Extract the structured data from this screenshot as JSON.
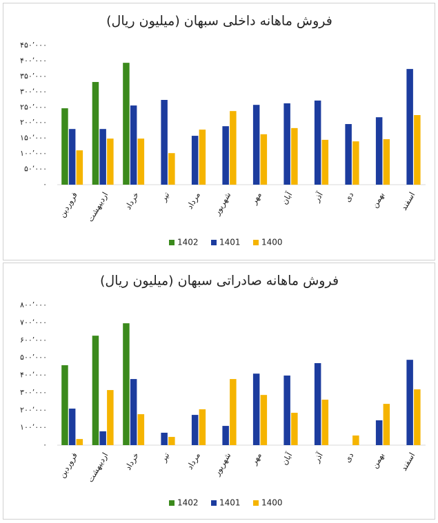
{
  "chart_data": [
    {
      "type": "bar",
      "title": "فروش ماهانه داخلی سبهان (میلیون ریال)",
      "categories": [
        "فروردین",
        "اردیبهشت",
        "خرداد",
        "تیر",
        "مرداد",
        "شهریور",
        "مهر",
        "آبان",
        "آذر",
        "دی",
        "بهمن",
        "اسفند"
      ],
      "series": [
        {
          "name": "1402",
          "color": "#3b8a1c",
          "values": [
            247000,
            332000,
            394000,
            null,
            null,
            null,
            null,
            null,
            null,
            null,
            null,
            null
          ]
        },
        {
          "name": "1401",
          "color": "#1c3c9e",
          "values": [
            180000,
            180000,
            256000,
            274000,
            158000,
            189000,
            258000,
            263000,
            272000,
            196000,
            218000,
            374000
          ]
        },
        {
          "name": "1400",
          "color": "#f5b400",
          "values": [
            111000,
            149000,
            149000,
            102000,
            178000,
            238000,
            163000,
            183000,
            145000,
            140000,
            147000,
            225000
          ]
        }
      ],
      "ylim": [
        0,
        450000
      ],
      "yticks": [
        {
          "value": 0,
          "label": "۰"
        },
        {
          "value": 50000,
          "label": "۵۰٬۰۰۰"
        },
        {
          "value": 100000,
          "label": "۱۰۰٬۰۰۰"
        },
        {
          "value": 150000,
          "label": "۱۵۰٬۰۰۰"
        },
        {
          "value": 200000,
          "label": "۲۰۰٬۰۰۰"
        },
        {
          "value": 250000,
          "label": "۲۵۰٬۰۰۰"
        },
        {
          "value": 300000,
          "label": "۳۰۰٬۰۰۰"
        },
        {
          "value": 350000,
          "label": "۳۵۰٬۰۰۰"
        },
        {
          "value": 400000,
          "label": "۴۰۰٬۰۰۰"
        },
        {
          "value": 450000,
          "label": "۴۵۰٬۰۰۰"
        }
      ],
      "legend": "bottom"
    },
    {
      "type": "bar",
      "title": "فروش ماهانه صادراتی سبهان (میلیون ریال)",
      "categories": [
        "فروردین",
        "اردیبهشت",
        "خرداد",
        "تیر",
        "مرداد",
        "شهریور",
        "مهر",
        "آبان",
        "آذر",
        "دی",
        "بهمن",
        "اسفند"
      ],
      "series": [
        {
          "name": "1402",
          "color": "#3b8a1c",
          "values": [
            457000,
            626000,
            697000,
            null,
            null,
            null,
            null,
            null,
            null,
            null,
            null,
            null
          ]
        },
        {
          "name": "1401",
          "color": "#1c3c9e",
          "values": [
            209000,
            79000,
            378000,
            71000,
            173000,
            110000,
            409000,
            398000,
            469000,
            null,
            142000,
            488000
          ]
        },
        {
          "name": "1400",
          "color": "#f5b400",
          "values": [
            35000,
            315000,
            177000,
            47000,
            205000,
            378000,
            287000,
            185000,
            260000,
            55000,
            236000,
            319000
          ]
        }
      ],
      "ylim": [
        0,
        800000
      ],
      "yticks": [
        {
          "value": 0,
          "label": "۰"
        },
        {
          "value": 100000,
          "label": "۱۰۰٬۰۰۰"
        },
        {
          "value": 200000,
          "label": "۲۰۰٬۰۰۰"
        },
        {
          "value": 300000,
          "label": "۳۰۰٬۰۰۰"
        },
        {
          "value": 400000,
          "label": "۴۰۰٬۰۰۰"
        },
        {
          "value": 500000,
          "label": "۵۰۰٬۰۰۰"
        },
        {
          "value": 600000,
          "label": "۶۰۰٬۰۰۰"
        },
        {
          "value": 700000,
          "label": "۷۰۰٬۰۰۰"
        },
        {
          "value": 800000,
          "label": "۸۰۰٬۰۰۰"
        }
      ],
      "legend": "bottom"
    }
  ]
}
